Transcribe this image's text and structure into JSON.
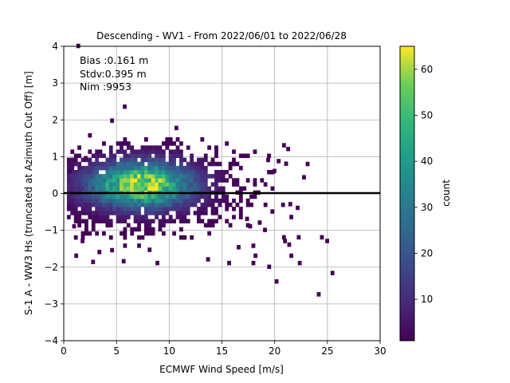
{
  "chart_data": {
    "type": "heatmap",
    "title": "Descending - WV1 - From 2022/06/01 to 2022/06/28",
    "xlabel": "ECMWF Wind Speed [m/s]",
    "ylabel": "S-1 A - WW3 Hs (truncated at Azimuth Cut Off) [m]",
    "xlim": [
      0,
      30
    ],
    "ylim": [
      -4,
      4
    ],
    "xticks": [
      "0",
      "5",
      "10",
      "15",
      "20",
      "25",
      "30"
    ],
    "yticks": [
      "−4",
      "−3",
      "−2",
      "−1",
      "0",
      "1",
      "2",
      "3",
      "4"
    ],
    "grid": true,
    "reference_line_y": 0,
    "stats": [
      "Bias :0.161 m",
      "Stdv:0.395 m",
      "Nim :9953"
    ],
    "colorbar": {
      "label": "count",
      "range": [
        1,
        65
      ],
      "ticks": [
        "10",
        "20",
        "30",
        "40",
        "50",
        "60"
      ],
      "tick_values": [
        10,
        20,
        30,
        40,
        50,
        60
      ]
    },
    "bin_size": [
      0.333,
      0.111
    ],
    "outliers": [
      [
        1.2,
        3.95
      ],
      [
        5.6,
        2.3
      ],
      [
        4.4,
        1.92
      ],
      [
        10.5,
        1.72
      ],
      [
        24.0,
        -2.8
      ],
      [
        25.3,
        -2.22
      ],
      [
        20.0,
        -2.45
      ],
      [
        19.3,
        -2.05
      ],
      [
        17.8,
        -1.95
      ],
      [
        21.4,
        -1.75
      ],
      [
        22.2,
        -1.95
      ],
      [
        18.0,
        -1.75
      ],
      [
        15.5,
        -1.95
      ],
      [
        13.5,
        -1.85
      ],
      [
        8.7,
        -1.95
      ],
      [
        5.5,
        -1.9
      ],
      [
        2.6,
        -1.92
      ],
      [
        22.6,
        0.38
      ],
      [
        21.3,
        -0.35
      ],
      [
        22.0,
        -0.45
      ],
      [
        20.7,
        -1.25
      ],
      [
        21.4,
        -0.7
      ],
      [
        20.8,
        -1.35
      ],
      [
        21.2,
        -1.45
      ],
      [
        22.1,
        -1.25
      ],
      [
        24.3,
        -1.25
      ],
      [
        24.8,
        -1.35
      ],
      [
        17.8,
        -1.48
      ],
      [
        16.4,
        -1.52
      ],
      [
        19.2,
        0.85
      ],
      [
        19.8,
        0.55
      ],
      [
        20.2,
        0.82
      ],
      [
        20.7,
        1.25
      ],
      [
        21.1,
        1.15
      ],
      [
        20.9,
        0.75
      ],
      [
        19.6,
        -0.55
      ],
      [
        18.9,
        -1.05
      ],
      [
        17.2,
        -0.75
      ],
      [
        17.5,
        -0.95
      ],
      [
        18.4,
        -0.85
      ],
      [
        1.0,
        -1.75
      ],
      [
        0.8,
        -0.95
      ],
      [
        1.6,
        -1.35
      ],
      [
        1.9,
        0.9
      ],
      [
        0.4,
        0.55
      ],
      [
        3.2,
        -1.65
      ],
      [
        4.4,
        -1.6
      ]
    ]
  }
}
